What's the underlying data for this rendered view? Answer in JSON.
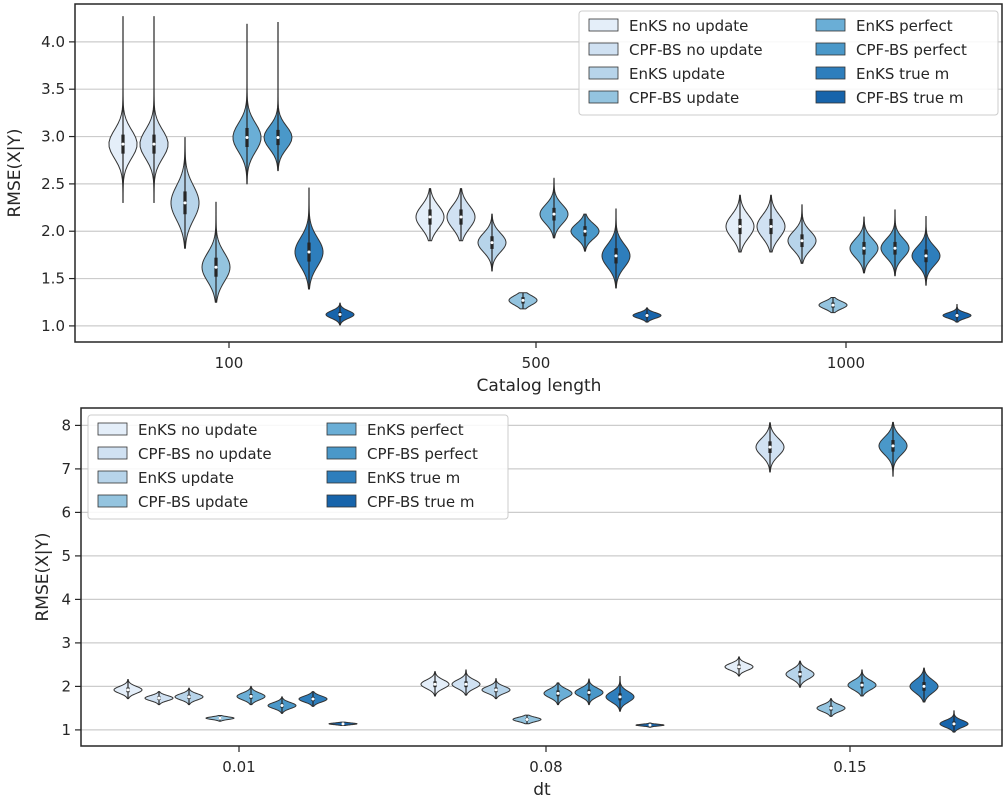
{
  "palette": [
    "#e4eef9",
    "#d0e1f2",
    "#b7d4ea",
    "#94c4df",
    "#6aaed6",
    "#4a98c9",
    "#2e7ebc",
    "#1764ab"
  ],
  "chart_data": [
    {
      "type": "violin",
      "xlabel": "Catalog length",
      "ylabel": "RMSE(X|Y)",
      "ylim": [
        0.83,
        4.4
      ],
      "yticks": [
        1.0,
        1.5,
        2.0,
        2.5,
        3.0,
        3.5,
        4.0
      ],
      "ytick_labels": [
        "1.0",
        "1.5",
        "2.0",
        "2.5",
        "3.0",
        "3.5",
        "4.0"
      ],
      "categories": [
        "100",
        "500",
        "1000"
      ],
      "grid": "horizontal",
      "legend": {
        "placement": "top-right",
        "columns": 2
      },
      "series": [
        {
          "name": "EnKS no update",
          "violins": [
            {
              "min": 2.3,
              "max": 4.27,
              "median": 2.92,
              "spread": 0.15
            },
            {
              "min": 1.9,
              "max": 2.45,
              "median": 2.15,
              "spread": 0.12
            },
            {
              "min": 1.78,
              "max": 2.38,
              "median": 2.05,
              "spread": 0.12
            }
          ]
        },
        {
          "name": "CPF-BS no update",
          "violins": [
            {
              "min": 2.3,
              "max": 4.27,
              "median": 2.92,
              "spread": 0.15
            },
            {
              "min": 1.9,
              "max": 2.45,
              "median": 2.15,
              "spread": 0.12
            },
            {
              "min": 1.78,
              "max": 2.38,
              "median": 2.05,
              "spread": 0.12
            }
          ]
        },
        {
          "name": "EnKS update",
          "violins": [
            {
              "min": 1.82,
              "max": 2.99,
              "median": 2.3,
              "spread": 0.18
            },
            {
              "min": 1.58,
              "max": 2.18,
              "median": 1.88,
              "spread": 0.1
            },
            {
              "min": 1.66,
              "max": 2.28,
              "median": 1.9,
              "spread": 0.1
            }
          ]
        },
        {
          "name": "CPF-BS update",
          "violins": [
            {
              "min": 1.25,
              "max": 2.31,
              "median": 1.62,
              "spread": 0.15
            },
            {
              "min": 1.18,
              "max": 1.35,
              "median": 1.27,
              "spread": 0.05
            },
            {
              "min": 1.14,
              "max": 1.3,
              "median": 1.22,
              "spread": 0.04
            }
          ]
        },
        {
          "name": "EnKS perfect",
          "violins": [
            {
              "min": 2.5,
              "max": 4.19,
              "median": 2.99,
              "spread": 0.15
            },
            {
              "min": 1.93,
              "max": 2.56,
              "median": 2.18,
              "spread": 0.1
            },
            {
              "min": 1.56,
              "max": 2.15,
              "median": 1.82,
              "spread": 0.1
            }
          ]
        },
        {
          "name": "CPF-BS perfect",
          "violins": [
            {
              "min": 2.64,
              "max": 4.21,
              "median": 2.99,
              "spread": 0.12
            },
            {
              "min": 1.79,
              "max": 2.18,
              "median": 2.0,
              "spread": 0.08
            },
            {
              "min": 1.53,
              "max": 2.23,
              "median": 1.82,
              "spread": 0.1
            }
          ]
        },
        {
          "name": "EnKS true m",
          "violins": [
            {
              "min": 1.39,
              "max": 2.46,
              "median": 1.78,
              "spread": 0.15
            },
            {
              "min": 1.4,
              "max": 2.24,
              "median": 1.74,
              "spread": 0.12
            },
            {
              "min": 1.43,
              "max": 2.16,
              "median": 1.74,
              "spread": 0.1
            }
          ]
        },
        {
          "name": "CPF-BS true m",
          "violins": [
            {
              "min": 1.01,
              "max": 1.24,
              "median": 1.12,
              "spread": 0.04
            },
            {
              "min": 1.04,
              "max": 1.19,
              "median": 1.11,
              "spread": 0.03
            },
            {
              "min": 1.04,
              "max": 1.23,
              "median": 1.11,
              "spread": 0.03
            }
          ]
        }
      ]
    },
    {
      "type": "violin",
      "xlabel": "dt",
      "ylabel": "RMSE(X|Y)",
      "ylim": [
        0.63,
        8.4
      ],
      "yticks": [
        1,
        2,
        3,
        4,
        5,
        6,
        7,
        8
      ],
      "ytick_labels": [
        "1",
        "2",
        "3",
        "4",
        "5",
        "6",
        "7",
        "8"
      ],
      "categories": [
        "0.01",
        "0.08",
        "0.15"
      ],
      "grid": "horizontal",
      "legend": {
        "placement": "top-left",
        "columns": 2
      },
      "series": [
        {
          "name": "EnKS no update",
          "violins": [
            {
              "min": 1.72,
              "max": 2.16,
              "median": 1.92,
              "spread": 0.08
            },
            {
              "min": 1.78,
              "max": 2.34,
              "median": 2.05,
              "spread": 0.1
            },
            {
              "min": 2.24,
              "max": 2.68,
              "median": 2.45,
              "spread": 0.08
            }
          ]
        },
        {
          "name": "CPF-BS no update",
          "violins": [
            {
              "min": 1.58,
              "max": 1.88,
              "median": 1.73,
              "spread": 0.06
            },
            {
              "min": 1.8,
              "max": 2.38,
              "median": 2.05,
              "spread": 0.1
            },
            {
              "min": 6.93,
              "max": 8.06,
              "median": 7.5,
              "spread": 0.2
            }
          ]
        },
        {
          "name": "EnKS update",
          "violins": [
            {
              "min": 1.58,
              "max": 1.96,
              "median": 1.76,
              "spread": 0.07
            },
            {
              "min": 1.72,
              "max": 2.18,
              "median": 1.92,
              "spread": 0.08
            },
            {
              "min": 1.98,
              "max": 2.58,
              "median": 2.28,
              "spread": 0.11
            }
          ]
        },
        {
          "name": "CPF-BS update",
          "violins": [
            {
              "min": 1.2,
              "max": 1.33,
              "median": 1.27,
              "spread": 0.03
            },
            {
              "min": 1.14,
              "max": 1.34,
              "median": 1.24,
              "spread": 0.05
            },
            {
              "min": 1.31,
              "max": 1.72,
              "median": 1.5,
              "spread": 0.08
            }
          ]
        },
        {
          "name": "EnKS perfect",
          "violins": [
            {
              "min": 1.58,
              "max": 2.0,
              "median": 1.77,
              "spread": 0.08
            },
            {
              "min": 1.58,
              "max": 2.08,
              "median": 1.84,
              "spread": 0.1
            },
            {
              "min": 1.78,
              "max": 2.38,
              "median": 2.03,
              "spread": 0.11
            }
          ]
        },
        {
          "name": "CPF-BS perfect",
          "violins": [
            {
              "min": 1.38,
              "max": 1.76,
              "median": 1.56,
              "spread": 0.07
            },
            {
              "min": 1.58,
              "max": 2.17,
              "median": 1.86,
              "spread": 0.1
            },
            {
              "min": 6.83,
              "max": 8.07,
              "median": 7.53,
              "spread": 0.2
            }
          ]
        },
        {
          "name": "EnKS true m",
          "violins": [
            {
              "min": 1.54,
              "max": 1.88,
              "median": 1.71,
              "spread": 0.07
            },
            {
              "min": 1.43,
              "max": 2.24,
              "median": 1.76,
              "spread": 0.12
            },
            {
              "min": 1.64,
              "max": 2.42,
              "median": 2.0,
              "spread": 0.15
            }
          ]
        },
        {
          "name": "CPF-BS true m",
          "violins": [
            {
              "min": 1.1,
              "max": 1.18,
              "median": 1.14,
              "spread": 0.02
            },
            {
              "min": 1.06,
              "max": 1.16,
              "median": 1.11,
              "spread": 0.02
            },
            {
              "min": 0.95,
              "max": 1.44,
              "median": 1.14,
              "spread": 0.08
            }
          ]
        }
      ]
    }
  ]
}
